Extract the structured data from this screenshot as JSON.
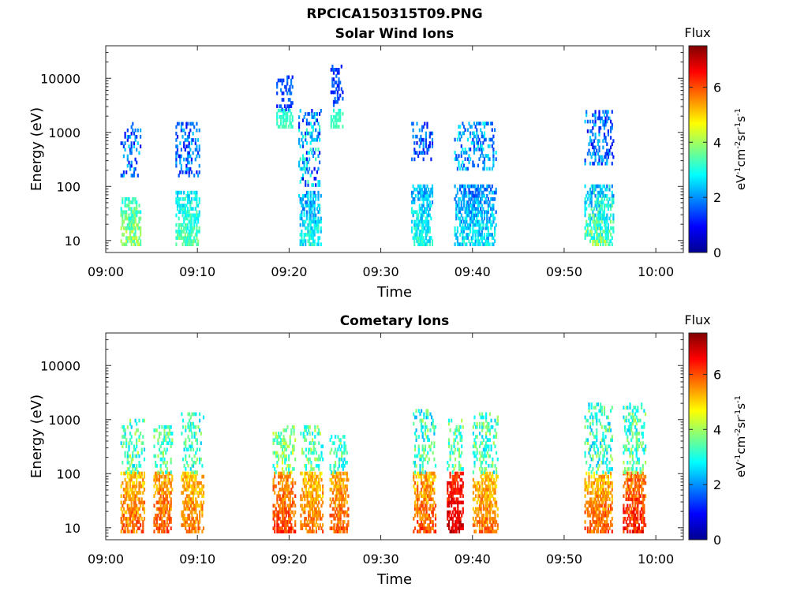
{
  "figure_title": "RPCICA150315T09.PNG",
  "chart_data": [
    {
      "type": "heatmap",
      "title": "Solar Wind Ions",
      "xlabel": "Time",
      "ylabel": "Energy (eV)",
      "x_ticks": [
        "09:00",
        "09:10",
        "09:20",
        "09:30",
        "09:40",
        "09:50",
        "10:00"
      ],
      "y_ticks": [
        "10",
        "100",
        "1000",
        "10000"
      ],
      "x_range_minutes": [
        0,
        63
      ],
      "y_scale": "log",
      "y_range": [
        6,
        40000
      ],
      "colorbar": {
        "title": "Flux",
        "unit": "eV-1cm-2sr-1s-1",
        "ticks": [
          0,
          2,
          4,
          6
        ],
        "range": [
          0,
          7.5
        ],
        "colormap": "jet"
      },
      "clusters": [
        {
          "t": [
            1.6,
            3.8
          ],
          "low_e": [
            8,
            60
          ],
          "low_flux": [
            2.5,
            4.6
          ],
          "high_e": [
            150,
            1500
          ],
          "high_flux": [
            0.8,
            2.6
          ]
        },
        {
          "t": [
            7.6,
            10.2
          ],
          "low_e": [
            8,
            80
          ],
          "low_flux": [
            2.2,
            4.0
          ],
          "high_e": [
            150,
            1500
          ],
          "high_flux": [
            0.8,
            2.4
          ]
        },
        {
          "t": [
            18.6,
            20.4
          ],
          "low_e": [
            1200,
            2500
          ],
          "low_flux": [
            2.8,
            3.6
          ],
          "high_e": [
            2500,
            10000
          ],
          "high_flux": [
            1.0,
            2.0
          ]
        },
        {
          "t": [
            21.0,
            23.5
          ],
          "low_e": [
            8,
            80
          ],
          "low_flux": [
            1.4,
            3.6
          ],
          "high_e": [
            100,
            2500
          ],
          "high_flux": [
            0.6,
            3.4
          ]
        },
        {
          "t": [
            24.5,
            25.8
          ],
          "low_e": [
            1200,
            2500
          ],
          "low_flux": [
            3.0,
            3.6
          ],
          "high_e": [
            3000,
            17000
          ],
          "high_flux": [
            1.0,
            1.8
          ]
        },
        {
          "t": [
            33.3,
            35.6
          ],
          "low_e": [
            8,
            100
          ],
          "low_flux": [
            1.6,
            3.6
          ],
          "high_e": [
            300,
            1500
          ],
          "high_flux": [
            0.8,
            2.4
          ]
        },
        {
          "t": [
            38.0,
            42.5
          ],
          "low_e": [
            8,
            100
          ],
          "low_flux": [
            1.2,
            3.4
          ],
          "high_e": [
            200,
            1500
          ],
          "high_flux": [
            1.2,
            3.0
          ]
        },
        {
          "t": [
            52.2,
            55.4
          ],
          "low_e": [
            8,
            100
          ],
          "low_flux": [
            1.6,
            4.4
          ],
          "high_e": [
            250,
            2500
          ],
          "high_flux": [
            0.8,
            2.6
          ]
        }
      ]
    },
    {
      "type": "heatmap",
      "title": "Cometary Ions",
      "xlabel": "Time",
      "ylabel": "Energy (eV)",
      "x_ticks": [
        "09:00",
        "09:10",
        "09:20",
        "09:30",
        "09:40",
        "09:50",
        "10:00"
      ],
      "y_ticks": [
        "10",
        "100",
        "1000",
        "10000"
      ],
      "x_range_minutes": [
        0,
        63
      ],
      "y_scale": "log",
      "y_range": [
        6,
        40000
      ],
      "colorbar": {
        "title": "Flux",
        "unit": "eV-1cm-2sr-1s-1",
        "ticks": [
          0,
          2,
          4,
          6
        ],
        "range": [
          0,
          7.5
        ],
        "colormap": "jet"
      },
      "clusters": [
        {
          "t": [
            1.6,
            4.2
          ],
          "low_e": [
            8,
            100
          ],
          "low_flux": [
            4.5,
            6.4
          ],
          "high_e": [
            100,
            1000
          ],
          "high_flux": [
            2.4,
            4.4
          ]
        },
        {
          "t": [
            5.2,
            7.2
          ],
          "low_e": [
            8,
            100
          ],
          "low_flux": [
            4.8,
            6.4
          ],
          "high_e": [
            100,
            700
          ],
          "high_flux": [
            2.6,
            4.2
          ]
        },
        {
          "t": [
            8.2,
            10.6
          ],
          "low_e": [
            8,
            100
          ],
          "low_flux": [
            4.6,
            6.2
          ],
          "high_e": [
            100,
            1200
          ],
          "high_flux": [
            2.4,
            4.0
          ]
        },
        {
          "t": [
            18.2,
            20.6
          ],
          "low_e": [
            8,
            100
          ],
          "low_flux": [
            5.0,
            6.6
          ],
          "high_e": [
            100,
            700
          ],
          "high_flux": [
            2.8,
            4.6
          ]
        },
        {
          "t": [
            21.2,
            23.6
          ],
          "low_e": [
            8,
            100
          ],
          "low_flux": [
            4.6,
            6.2
          ],
          "high_e": [
            100,
            700
          ],
          "high_flux": [
            2.6,
            4.4
          ]
        },
        {
          "t": [
            24.4,
            26.4
          ],
          "low_e": [
            8,
            100
          ],
          "low_flux": [
            4.8,
            6.4
          ],
          "high_e": [
            100,
            500
          ],
          "high_flux": [
            2.4,
            4.0
          ]
        },
        {
          "t": [
            33.5,
            36.0
          ],
          "low_e": [
            8,
            100
          ],
          "low_flux": [
            4.6,
            6.6
          ],
          "high_e": [
            100,
            1500
          ],
          "high_flux": [
            2.2,
            4.2
          ]
        },
        {
          "t": [
            37.2,
            39.0
          ],
          "low_e": [
            8,
            100
          ],
          "low_flux": [
            5.8,
            7.3
          ],
          "high_e": [
            100,
            1000
          ],
          "high_flux": [
            2.6,
            4.2
          ]
        },
        {
          "t": [
            40.0,
            42.8
          ],
          "low_e": [
            8,
            100
          ],
          "low_flux": [
            4.6,
            6.2
          ],
          "high_e": [
            100,
            1200
          ],
          "high_flux": [
            2.4,
            4.2
          ]
        },
        {
          "t": [
            52.2,
            55.2
          ],
          "low_e": [
            8,
            100
          ],
          "low_flux": [
            4.6,
            6.4
          ],
          "high_e": [
            100,
            2000
          ],
          "high_flux": [
            2.2,
            4.2
          ]
        },
        {
          "t": [
            56.4,
            58.8
          ],
          "low_e": [
            8,
            100
          ],
          "low_flux": [
            5.0,
            7.0
          ],
          "high_e": [
            100,
            2000
          ],
          "high_flux": [
            2.4,
            4.2
          ]
        }
      ]
    }
  ]
}
